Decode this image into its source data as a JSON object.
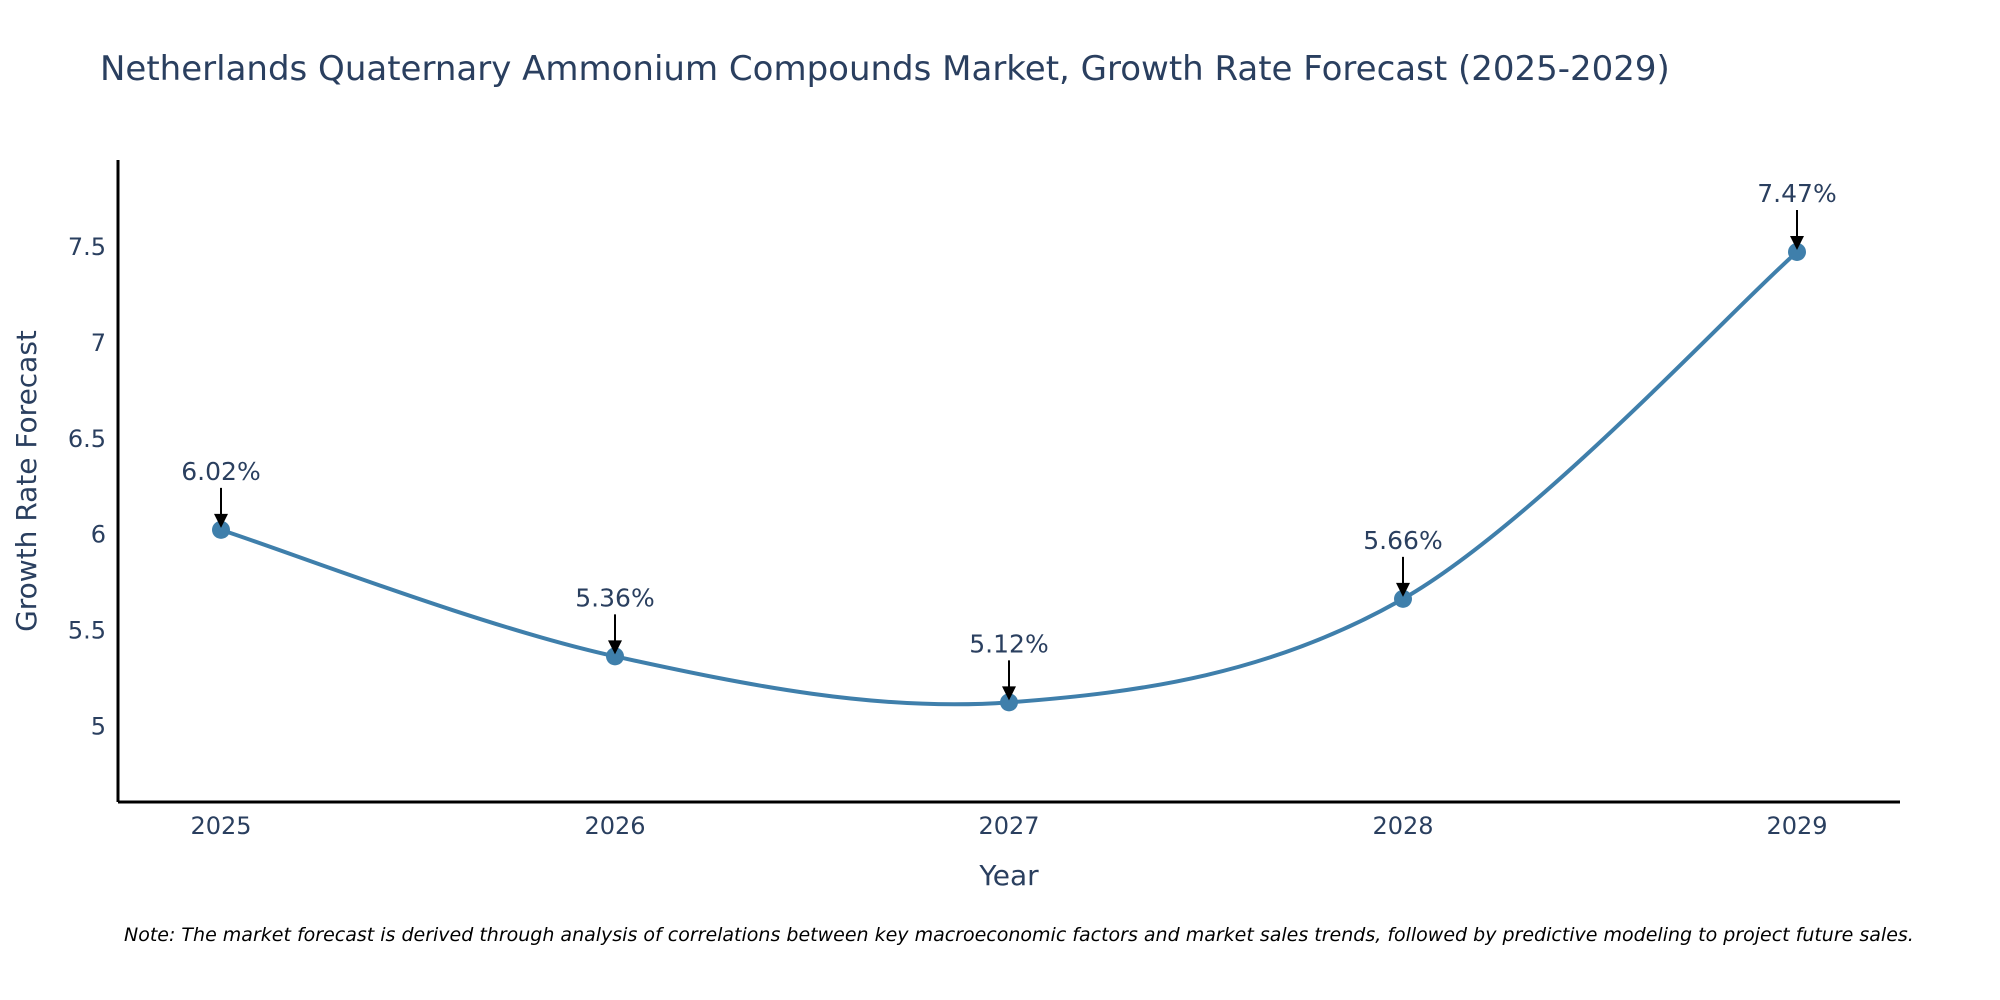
{
  "chart_data": {
    "type": "line",
    "title": "Netherlands Quaternary Ammonium Compounds Market, Growth Rate Forecast (2025-2029)",
    "xlabel": "Year",
    "ylabel": "Growth Rate Forecast",
    "categories": [
      "2025",
      "2026",
      "2027",
      "2028",
      "2029"
    ],
    "series": [
      {
        "name": "Growth Rate Forecast",
        "values": [
          6.02,
          5.36,
          5.12,
          5.66,
          7.47
        ]
      }
    ],
    "data_labels": [
      "6.02%",
      "5.36%",
      "5.12%",
      "5.66%",
      "7.47%"
    ],
    "yticks": [
      5,
      5.5,
      6,
      6.5,
      7,
      7.5
    ],
    "ytick_labels": [
      "5",
      "5.5",
      "6",
      "6.5",
      "7",
      "7.5"
    ],
    "ylim": [
      4.6,
      7.95
    ],
    "grid": false,
    "line_shape": "spline",
    "note": "Note: The market forecast is derived through analysis of correlations between key macroeconomic factors and market sales trends, followed by predictive modeling to project future sales.",
    "colors": {
      "line": "#3f7fab",
      "marker": "#3f7fab",
      "text": "#2a3f5f",
      "axis": "#000000",
      "arrow": "#000000"
    }
  }
}
